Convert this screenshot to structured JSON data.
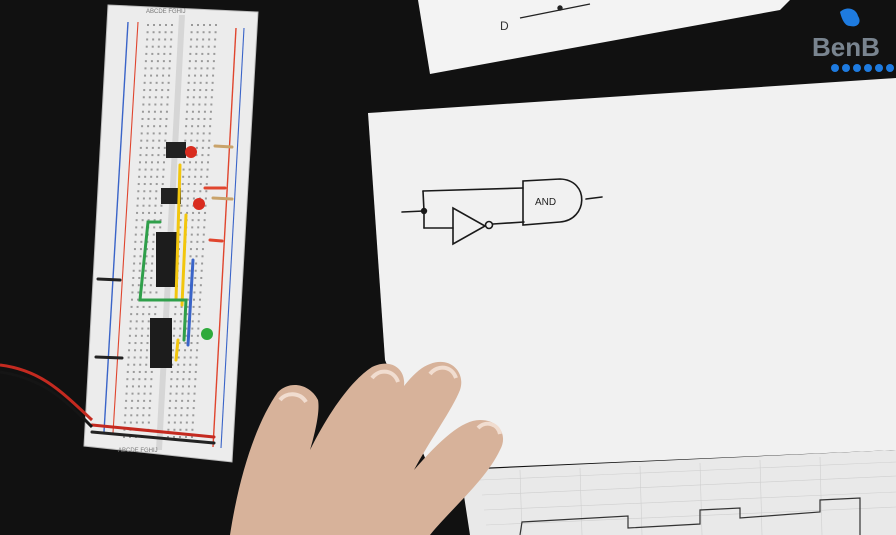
{
  "scene": {
    "colors": {
      "table": "#111111",
      "paper": "#f2f2f2",
      "breadboard": "#efefef",
      "skin": "#d9b39c",
      "rail_red": "#e0452e",
      "rail_blue": "#3a64c8",
      "wire_yellow": "#f2c60d",
      "wire_green": "#2f9f4a",
      "led_red": "#d92c1f",
      "led_green": "#2eaa3b",
      "logo_blue": "#1e7be0"
    }
  },
  "sketch": {
    "gate_label": "AND",
    "partial_label": "D"
  },
  "logo": {
    "text": "BenB",
    "icon": "bird-icon"
  },
  "breadboard": {
    "column_letters_top": "ABCDE FGHIJ",
    "column_letters_bottom": "ABCDE FGHIJ"
  }
}
